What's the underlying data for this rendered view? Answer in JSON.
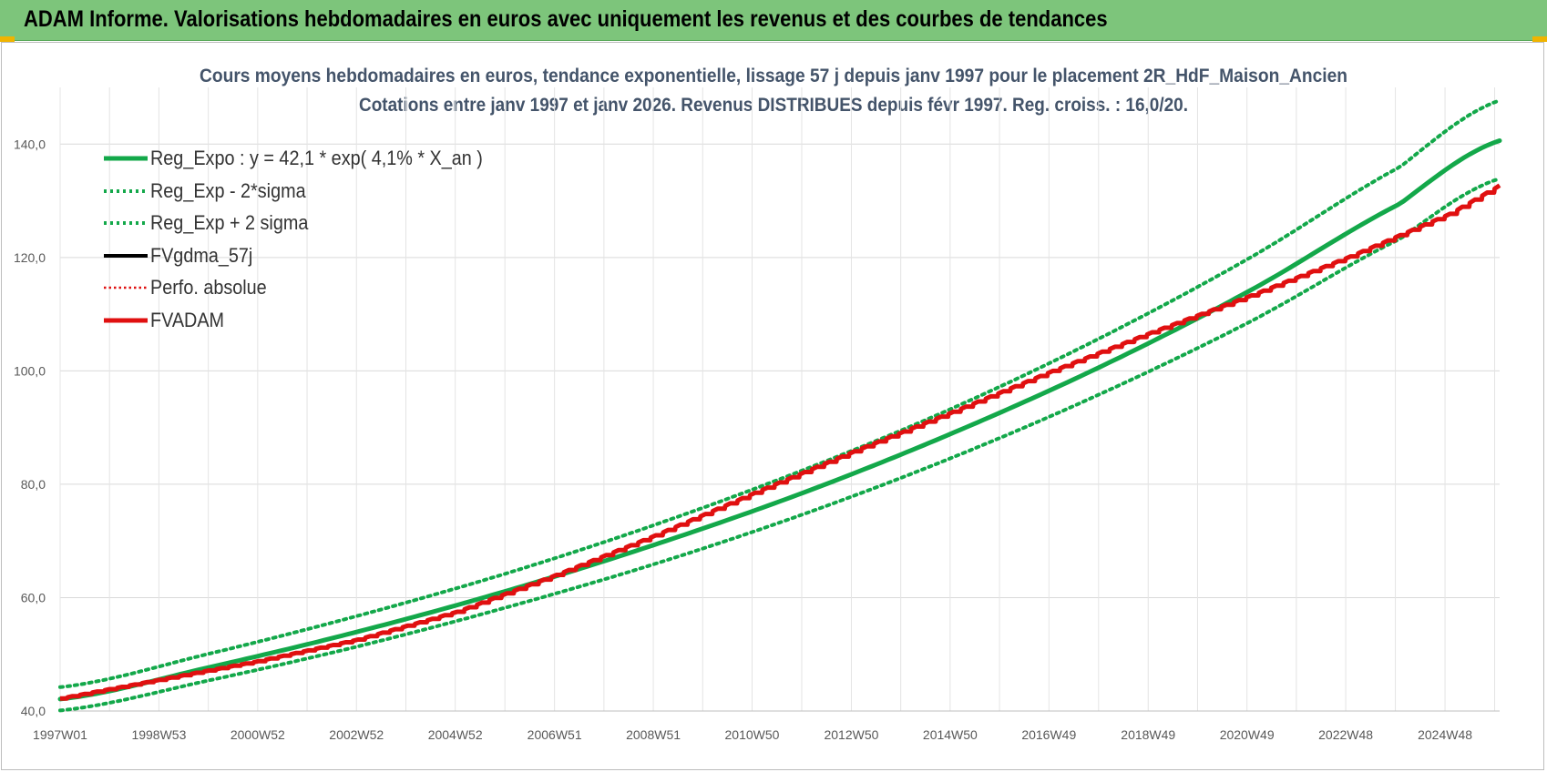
{
  "header": {
    "title": "ADAM Informe. Valorisations hebdomadaires en euros avec uniquement les revenus et des courbes de tendances"
  },
  "chart_data": {
    "type": "line",
    "title": "Cours moyens hebdomadaires en euros, tendance exponentielle, lissage 57 j depuis janv 1997 pour le placement 2R_HdF_Maison_Ancien",
    "subtitle": "Cotations entre janv 1997 et janv 2026. Revenus DISTRIBUES depuis févr 1997. Reg. croiss. : 16,0/20.",
    "xlabel": "",
    "ylabel": "",
    "x_range": [
      1997.0,
      2026.0
    ],
    "ylim": [
      40,
      150
    ],
    "y_ticks": [
      40,
      60,
      80,
      100,
      120,
      140
    ],
    "y_tick_labels": [
      "40,0",
      "60,0",
      "80,0",
      "100,0",
      "120,0",
      "140,0"
    ],
    "x_ticks": [
      1997.0,
      1998.99,
      2000.98,
      2002.97,
      2004.96,
      2006.96,
      2008.95,
      2010.94,
      2012.94,
      2014.93,
      2016.92,
      2018.92,
      2020.91,
      2022.9,
      2024.9
    ],
    "x_tick_labels": [
      "1997W01",
      "1998W53",
      "2000W52",
      "2002W52",
      "2004W52",
      "2006W51",
      "2008W51",
      "2010W50",
      "2012W50",
      "2014W50",
      "2016W49",
      "2018W49",
      "2020W49",
      "2022W48",
      "2024W48"
    ],
    "grid": true,
    "legend_position": "top-left",
    "series": [
      {
        "name": "Reg_Expo : y = 42,1 * exp( 4,1% *  X_an )",
        "color": "#13a84a",
        "style": "solid",
        "x": [
          1997,
          2000,
          2003,
          2006,
          2009,
          2012,
          2015,
          2018,
          2021,
          2024,
          2026
        ],
        "values": [
          42.1,
          47.7,
          54.0,
          61.2,
          69.4,
          78.6,
          89.1,
          100.9,
          114.3,
          129.5,
          140.6
        ]
      },
      {
        "name": "Reg_Exp - 2*sigma",
        "color": "#13a84a",
        "style": "dotted",
        "x": [
          1997,
          2000,
          2003,
          2006,
          2009,
          2012,
          2015,
          2018,
          2021,
          2024,
          2026
        ],
        "values": [
          40.1,
          45.4,
          51.4,
          58.3,
          66.0,
          74.8,
          84.8,
          96.1,
          108.8,
          123.3,
          133.9
        ]
      },
      {
        "name": "Reg_Exp + 2 sigma",
        "color": "#13a84a",
        "style": "dotted",
        "x": [
          1997,
          2000,
          2003,
          2006,
          2009,
          2012,
          2015,
          2018,
          2021,
          2024,
          2026
        ],
        "values": [
          44.2,
          50.1,
          56.8,
          64.3,
          72.9,
          82.6,
          93.5,
          106.0,
          120.1,
          136.0,
          147.7
        ]
      },
      {
        "name": "FVgdma_57j",
        "color": "#000000",
        "style": "solid",
        "x": [
          1997,
          1999,
          2001,
          2003,
          2005,
          2007,
          2009,
          2011,
          2013,
          2015,
          2017,
          2019,
          2021,
          2023,
          2025,
          2026
        ],
        "values": [
          42.2,
          45.5,
          48.8,
          52.6,
          57.5,
          64.0,
          71.0,
          78.5,
          85.8,
          92.8,
          100.0,
          106.8,
          113.3,
          120.2,
          127.7,
          132.7
        ]
      },
      {
        "name": "Perfo. absolue",
        "color": "#e01010",
        "style": "dotted",
        "x": [
          1997,
          1999,
          2001,
          2003,
          2005,
          2007,
          2009,
          2011,
          2013,
          2015,
          2017,
          2019,
          2021,
          2023,
          2025,
          2026
        ],
        "values": [
          42.2,
          45.5,
          48.8,
          52.6,
          57.5,
          64.0,
          71.0,
          78.5,
          85.8,
          92.8,
          100.0,
          106.8,
          113.3,
          120.2,
          127.7,
          132.7
        ]
      },
      {
        "name": "FVADAM",
        "color": "#e01010",
        "style": "solid-thick",
        "x": [
          1997,
          1999,
          2001,
          2003,
          2005,
          2007,
          2009,
          2011,
          2013,
          2015,
          2017,
          2019,
          2021,
          2023,
          2025,
          2026
        ],
        "values": [
          42.2,
          45.5,
          48.8,
          52.6,
          57.5,
          64.0,
          71.0,
          78.5,
          85.8,
          92.8,
          100.0,
          106.8,
          113.3,
          120.2,
          127.7,
          132.7
        ]
      }
    ]
  }
}
